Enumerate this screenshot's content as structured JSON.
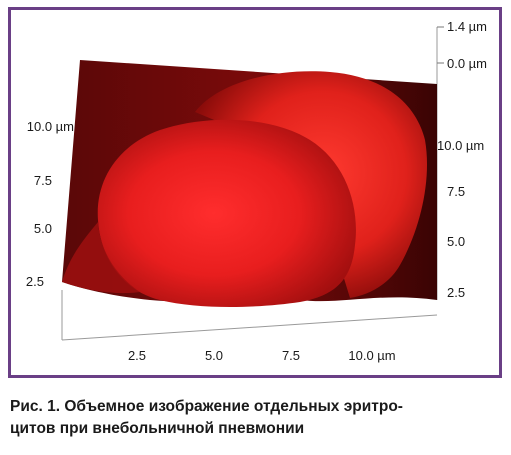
{
  "figure": {
    "z_ticks": [
      "1.4 µm",
      "0.0 µm"
    ],
    "left_ticks": [
      "10.0 µm",
      "7.5",
      "5.0",
      "2.5"
    ],
    "right_ticks": [
      "10.0 µm",
      "7.5",
      "5.0",
      "2.5"
    ],
    "bottom_ticks": [
      "2.5",
      "5.0",
      "7.5",
      "10.0 µm"
    ],
    "colors": {
      "surface_light": "#ff2a2a",
      "surface_mid": "#d81b1b",
      "surface_dark": "#4a0606",
      "frame": "#6a3f86"
    }
  },
  "caption": {
    "line1": "Рис. 1. Объемное изображение отдельных эритро-",
    "line2": "цитов при внебольничной пневмонии"
  }
}
